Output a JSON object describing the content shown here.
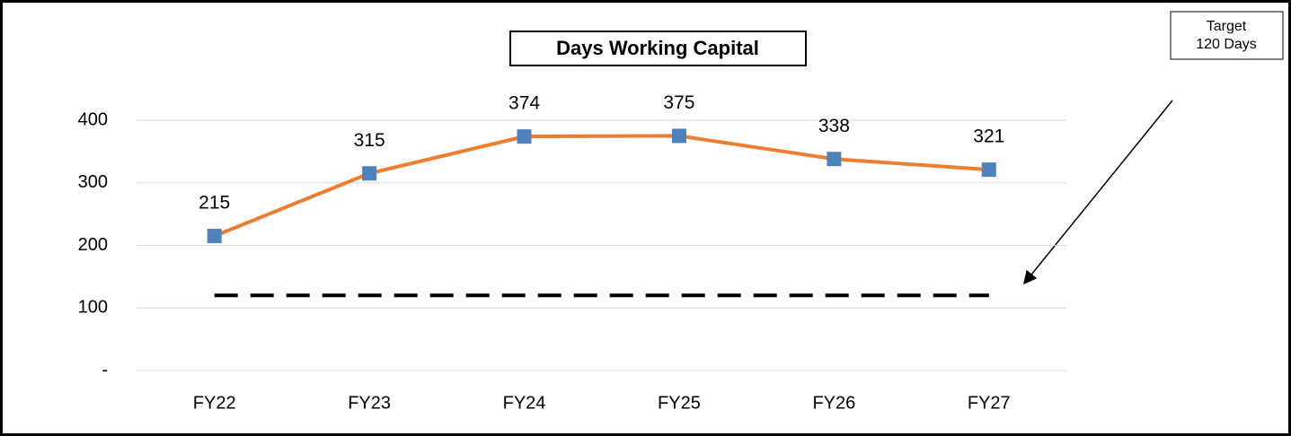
{
  "chart_data": {
    "type": "line",
    "title": "Days Working Capital",
    "categories": [
      "FY22",
      "FY23",
      "FY24",
      "FY25",
      "FY26",
      "FY27"
    ],
    "values": [
      215,
      315,
      374,
      375,
      338,
      321
    ],
    "color": "#ed7d31",
    "marker_color": "#4f81bd",
    "ylim": [
      0,
      400
    ],
    "yticks": [
      {
        "value": 0,
        "label": "-"
      },
      100,
      200,
      300,
      400
    ],
    "grid": true,
    "target": {
      "value": 120,
      "color": "#000000"
    },
    "annotation": [
      "Target",
      "120 Days"
    ]
  }
}
